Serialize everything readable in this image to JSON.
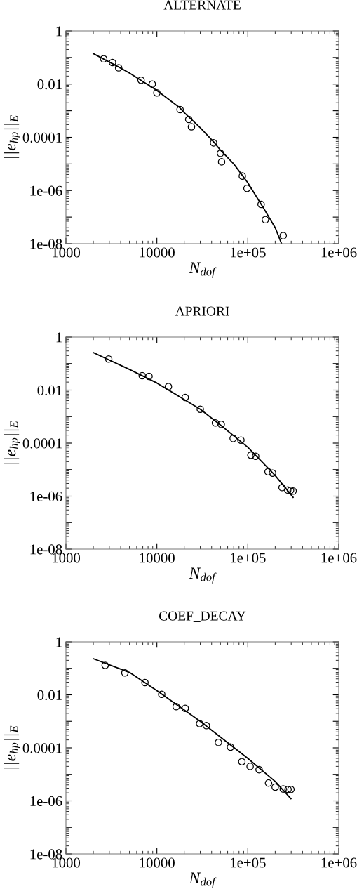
{
  "chart_data": [
    {
      "type": "scatter",
      "title": "ALTERNATE",
      "xlabel": "N$_{dof}$",
      "ylabel": "||e$_{hp}$||$_{E}$",
      "log": "xy",
      "grid": false,
      "xlim": [
        1000,
        1000000
      ],
      "ylim": [
        1e-08,
        1
      ],
      "xticks": [
        {
          "value": 1000,
          "label": "1000"
        },
        {
          "value": 10000,
          "label": "10000"
        },
        {
          "value": 100000,
          "label": "1e+05"
        },
        {
          "value": 1000000,
          "label": "1e+06"
        }
      ],
      "yticks": [
        {
          "value": 1,
          "label": "1"
        },
        {
          "value": 0.1,
          "label": null
        },
        {
          "value": 0.01,
          "label": "0.01"
        },
        {
          "value": 0.001,
          "label": null
        },
        {
          "value": 0.0001,
          "label": "0.0001"
        },
        {
          "value": 1e-05,
          "label": null
        },
        {
          "value": 1e-06,
          "label": "1e-06"
        },
        {
          "value": 1e-07,
          "label": null
        },
        {
          "value": 1e-08,
          "label": "1e-08"
        }
      ],
      "series": [
        {
          "marker": "circle",
          "color": "#000000",
          "x": [
            2600,
            3250,
            3800,
            6700,
            8900,
            10000,
            18000,
            22400,
            24000,
            42000,
            50000,
            51500,
            87000,
            98000,
            140000,
            156000,
            245000
          ],
          "values": [
            0.089,
            0.065,
            0.041,
            0.014,
            0.01,
            0.0047,
            0.0011,
            0.00047,
            0.00025,
            6.2e-05,
            2.5e-05,
            1.2e-05,
            3.5e-06,
            1.2e-06,
            3e-07,
            8e-08,
            2e-08
          ]
        },
        {
          "type": "line",
          "marker": "none",
          "line_style": "solid",
          "color": "#000000",
          "x": [
            2000,
            3800,
            5000,
            10000,
            18000,
            20000,
            30000,
            42000,
            50000,
            70000,
            100000,
            150000,
            200000,
            235000
          ],
          "values": [
            0.14,
            0.044,
            0.026,
            0.0058,
            0.00126,
            0.00085,
            0.00023,
            6.8e-05,
            3.3e-05,
            1e-05,
            1.95e-06,
            2.1e-07,
            4e-08,
            1e-08
          ]
        }
      ]
    },
    {
      "type": "scatter",
      "title": "APRIORI",
      "xlabel": "N$_{dof}$",
      "ylabel": "||e$_{hp}$||$_{E}$",
      "log": "xy",
      "grid": false,
      "xlim": [
        1000,
        1000000
      ],
      "ylim": [
        1e-08,
        1
      ],
      "xticks": [
        {
          "value": 1000,
          "label": "1000"
        },
        {
          "value": 10000,
          "label": "10000"
        },
        {
          "value": 100000,
          "label": "1e+05"
        },
        {
          "value": 1000000,
          "label": "1e+06"
        }
      ],
      "yticks": [
        {
          "value": 1,
          "label": "1"
        },
        {
          "value": 0.1,
          "label": null
        },
        {
          "value": 0.01,
          "label": "0.01"
        },
        {
          "value": 0.001,
          "label": null
        },
        {
          "value": 0.0001,
          "label": "0.0001"
        },
        {
          "value": 1e-05,
          "label": null
        },
        {
          "value": 1e-06,
          "label": "1e-06"
        },
        {
          "value": 1e-07,
          "label": null
        },
        {
          "value": 1e-08,
          "label": "1e-08"
        }
      ],
      "series": [
        {
          "marker": "circle",
          "color": "#000000",
          "x": [
            2950,
            6900,
            8200,
            13400,
            20500,
            30000,
            44000,
            51000,
            69000,
            84000,
            108000,
            122000,
            167000,
            187000,
            238000,
            275000,
            295000,
            315000
          ],
          "values": [
            0.148,
            0.035,
            0.033,
            0.0135,
            0.0053,
            0.0019,
            0.00058,
            0.00051,
            0.00015,
            0.00013,
            3.5e-05,
            3.2e-05,
            8.3e-06,
            7.4e-06,
            2.1e-06,
            1.7e-06,
            1.65e-06,
            1.55e-06
          ]
        },
        {
          "type": "line",
          "marker": "none",
          "line_style": "solid",
          "color": "#000000",
          "x": [
            2000,
            5000,
            10000,
            30000,
            50000,
            100000,
            200000,
            315000
          ],
          "values": [
            0.26,
            0.06,
            0.0185,
            0.0019,
            0.00048,
            7e-05,
            6e-06,
            9e-07
          ]
        }
      ]
    },
    {
      "type": "scatter",
      "title": "COEF_DECAY",
      "xlabel": "N$_{dof}$",
      "ylabel": "||e$_{hp}$||$_{E}$",
      "log": "xy",
      "grid": false,
      "xlim": [
        1000,
        1000000
      ],
      "ylim": [
        1e-08,
        1
      ],
      "xticks": [
        {
          "value": 1000,
          "label": "1000"
        },
        {
          "value": 10000,
          "label": "10000"
        },
        {
          "value": 100000,
          "label": "1e+05"
        },
        {
          "value": 1000000,
          "label": "1e+06"
        }
      ],
      "yticks": [
        {
          "value": 1,
          "label": "1"
        },
        {
          "value": 0.1,
          "label": null
        },
        {
          "value": 0.01,
          "label": "0.01"
        },
        {
          "value": 0.001,
          "label": null
        },
        {
          "value": 0.0001,
          "label": "0.0001"
        },
        {
          "value": 1e-05,
          "label": null
        },
        {
          "value": 1e-06,
          "label": "1e-06"
        },
        {
          "value": 1e-07,
          "label": null
        },
        {
          "value": 1e-08,
          "label": "1e-08"
        }
      ],
      "series": [
        {
          "marker": "circle",
          "color": "#000000",
          "x": [
            2700,
            4450,
            7400,
            11300,
            16300,
            20500,
            29500,
            35000,
            47500,
            64500,
            86000,
            106000,
            133000,
            169000,
            200000,
            245000,
            277000,
            298000
          ],
          "values": [
            0.13,
            0.067,
            0.029,
            0.0105,
            0.0036,
            0.0031,
            0.00082,
            0.00069,
            0.00016,
            0.000107,
            3e-05,
            2e-05,
            1.5e-05,
            4.7e-06,
            3.3e-06,
            2.8e-06,
            2.7e-06,
            2.7e-06
          ]
        },
        {
          "type": "line",
          "marker": "none",
          "line_style": "solid",
          "color": "#000000",
          "x": [
            2000,
            5000,
            10000,
            30000,
            100000,
            200000,
            298000
          ],
          "values": [
            0.23,
            0.07,
            0.0145,
            0.001,
            4e-05,
            5.4e-06,
            1.2e-06
          ]
        }
      ]
    }
  ]
}
